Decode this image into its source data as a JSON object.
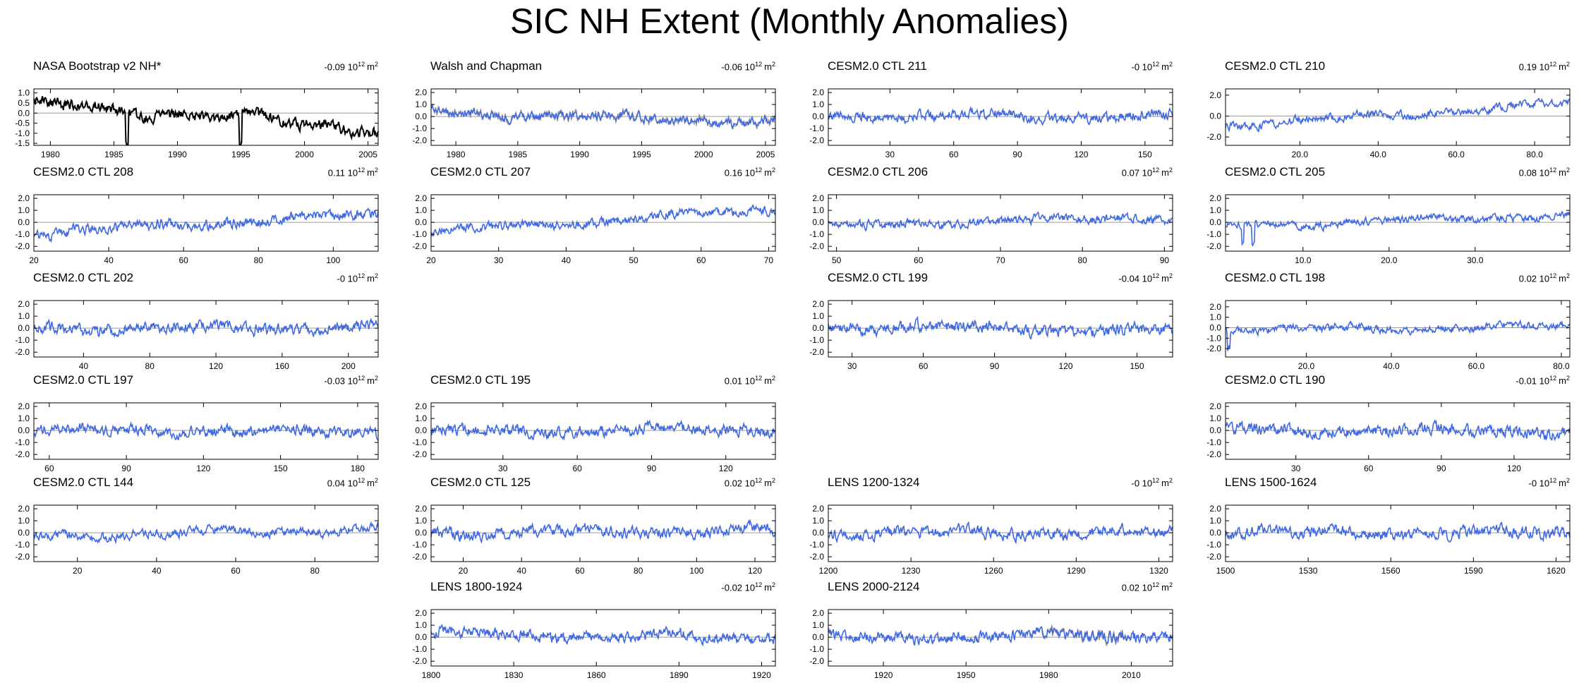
{
  "title": "SIC NH Extent (Monthly Anomalies)",
  "colors": {
    "model": "#4169e1",
    "obs": "#000000",
    "obs_overlay": "#8c8c8c",
    "zero_line": "#9a9a9a"
  },
  "mean_unit": {
    "base": "10",
    "exp": "12",
    "unit": "m",
    "unit_exp": "2"
  },
  "chart_data": [
    {
      "type": "line",
      "title": "NASA Bootstrap v2 NH*",
      "mean": "-0.09",
      "style": "obs",
      "row": 0,
      "col": 0,
      "x_range": [
        1978.7,
        2005.8
      ],
      "y_range": [
        -1.6,
        1.2
      ],
      "y_ticks": [
        "1.0",
        "0.5",
        "0.0",
        "-0.5",
        "-1.0",
        "-1.5"
      ],
      "x_ticks": [
        "1980",
        "1985",
        "1990",
        "1995",
        "2000",
        "2005"
      ],
      "series": [
        {
          "trend_start": 0.45,
          "trend_end": -0.75,
          "amplitude": 0.22,
          "spikes": [
            0.27,
            0.6
          ],
          "seed": 1
        }
      ]
    },
    {
      "type": "line",
      "title": "Walsh and Chapman",
      "mean": "-0.06",
      "style": "model",
      "row": 0,
      "col": 1,
      "x_range": [
        1978.0,
        2005.8
      ],
      "y_range": [
        -2.4,
        2.3
      ],
      "y_ticks": [
        "2.0",
        "1.0",
        "0.0",
        "-1.0",
        "-2.0"
      ],
      "x_ticks": [
        "1980",
        "1985",
        "1990",
        "1995",
        "2000",
        "2005"
      ],
      "overlay": "full",
      "series": [
        {
          "trend_start": 0.4,
          "trend_end": -0.5,
          "amplitude": 0.3,
          "seed": 2
        }
      ]
    },
    {
      "type": "line",
      "title": "CESM2.0 CTL 211",
      "mean": "-0",
      "style": "model",
      "row": 0,
      "col": 2,
      "x_range": [
        1,
        163
      ],
      "y_range": [
        -2.4,
        2.3
      ],
      "y_ticks": [
        "2.0",
        "1.0",
        "0.0",
        "-1.0",
        "-2.0"
      ],
      "x_ticks": [
        "30",
        "60",
        "90",
        "120",
        "150"
      ],
      "series": [
        {
          "trend_start": 0.1,
          "trend_end": 0.0,
          "amplitude": 0.35,
          "seed": 3
        }
      ]
    },
    {
      "type": "line",
      "title": "CESM2.0 CTL 210",
      "mean": "0.19",
      "style": "model",
      "row": 0,
      "col": 3,
      "x_range": [
        1,
        89
      ],
      "y_range": [
        -2.8,
        2.6
      ],
      "y_ticks": [
        "2.0",
        "0.0",
        "-2.0"
      ],
      "x_ticks": [
        "20.0",
        "40.0",
        "60.0",
        "80.0"
      ],
      "series": [
        {
          "trend_start": -0.9,
          "trend_end": 1.2,
          "amplitude": 0.3,
          "seed": 4
        }
      ]
    },
    {
      "type": "line",
      "title": "CESM2.0 CTL 208",
      "mean": "0.11",
      "style": "model",
      "row": 1,
      "col": 0,
      "x_range": [
        20,
        112
      ],
      "y_range": [
        -2.4,
        2.3
      ],
      "y_ticks": [
        "2.0",
        "1.0",
        "0.0",
        "-1.0",
        "-2.0"
      ],
      "x_ticks": [
        "20",
        "40",
        "60",
        "80",
        "100"
      ],
      "series": [
        {
          "trend_start": -0.9,
          "trend_end": 0.7,
          "amplitude": 0.35,
          "seed": 5
        }
      ]
    },
    {
      "type": "line",
      "title": "CESM2.0 CTL 207",
      "mean": "0.16",
      "style": "model",
      "row": 1,
      "col": 1,
      "x_range": [
        20,
        71
      ],
      "y_range": [
        -2.4,
        2.3
      ],
      "y_ticks": [
        "2.0",
        "1.0",
        "0.0",
        "-1.0",
        "-2.0"
      ],
      "x_ticks": [
        "20",
        "30",
        "40",
        "50",
        "60",
        "70"
      ],
      "series": [
        {
          "trend_start": -0.8,
          "trend_end": 1.1,
          "amplitude": 0.3,
          "seed": 6
        }
      ]
    },
    {
      "type": "line",
      "title": "CESM2.0 CTL 206",
      "mean": "0.07",
      "style": "model",
      "row": 1,
      "col": 2,
      "x_range": [
        49,
        91
      ],
      "y_range": [
        -2.4,
        2.3
      ],
      "y_ticks": [
        "2.0",
        "1.0",
        "0.0",
        "-1.0",
        "-2.0"
      ],
      "x_ticks": [
        "50",
        "60",
        "70",
        "80",
        "90"
      ],
      "series": [
        {
          "trend_start": -0.4,
          "trend_end": 0.5,
          "amplitude": 0.3,
          "seed": 7
        }
      ]
    },
    {
      "type": "line",
      "title": "CESM2.0 CTL 205",
      "mean": "0.08",
      "style": "model",
      "row": 1,
      "col": 3,
      "x_range": [
        1,
        41
      ],
      "y_range": [
        -2.4,
        2.3
      ],
      "y_ticks": [
        "2.0",
        "1.0",
        "0.0",
        "-1.0",
        "-2.0"
      ],
      "x_ticks": [
        "10.0",
        "20.0",
        "30.0"
      ],
      "series": [
        {
          "trend_start": -0.3,
          "trend_end": 0.6,
          "amplitude": 0.25,
          "spikes": [
            0.05,
            0.08
          ],
          "seed": 8
        }
      ]
    },
    {
      "type": "line",
      "title": "CESM2.0 CTL 202",
      "mean": "-0",
      "style": "model",
      "row": 2,
      "col": 0,
      "x_range": [
        10,
        218
      ],
      "y_range": [
        -2.4,
        2.3
      ],
      "y_ticks": [
        "2.0",
        "1.0",
        "0.0",
        "-1.0",
        "-2.0"
      ],
      "x_ticks": [
        "40",
        "80",
        "120",
        "160",
        "200"
      ],
      "series": [
        {
          "trend_start": 0.0,
          "trend_end": 0.0,
          "amplitude": 0.38,
          "seed": 9
        }
      ]
    },
    {
      "type": "line",
      "title": "CESM2.0 CTL 199",
      "mean": "-0.04",
      "style": "model",
      "row": 2,
      "col": 2,
      "x_range": [
        20,
        165
      ],
      "y_range": [
        -2.4,
        2.3
      ],
      "y_ticks": [
        "2.0",
        "1.0",
        "0.0",
        "-1.0",
        "-2.0"
      ],
      "x_ticks": [
        "30",
        "60",
        "90",
        "120",
        "150"
      ],
      "series": [
        {
          "trend_start": 0.2,
          "trend_end": -0.3,
          "amplitude": 0.38,
          "seed": 10
        }
      ]
    },
    {
      "type": "line",
      "title": "CESM2.0 CTL 198",
      "mean": "0.02",
      "style": "model",
      "row": 2,
      "col": 3,
      "x_range": [
        1,
        82
      ],
      "y_range": [
        -2.8,
        2.6
      ],
      "y_ticks": [
        "2.0",
        "1.0",
        "0.0",
        "-1.0",
        "-2.0"
      ],
      "x_ticks": [
        "20.0",
        "40.0",
        "60.0",
        "80.0"
      ],
      "series": [
        {
          "trend_start": -0.2,
          "trend_end": 0.1,
          "amplitude": 0.3,
          "spikes": [
            0.01
          ],
          "seed": 11
        }
      ]
    },
    {
      "type": "line",
      "title": "CESM2.0 CTL 197",
      "mean": "-0.03",
      "style": "model",
      "row": 3,
      "col": 0,
      "x_range": [
        54,
        188
      ],
      "y_range": [
        -2.4,
        2.3
      ],
      "y_ticks": [
        "2.0",
        "1.0",
        "0.0",
        "-1.0",
        "-2.0"
      ],
      "x_ticks": [
        "60",
        "90",
        "120",
        "150",
        "180"
      ],
      "series": [
        {
          "trend_start": 0.1,
          "trend_end": -0.2,
          "amplitude": 0.38,
          "seed": 12
        }
      ]
    },
    {
      "type": "line",
      "title": "CESM2.0 CTL 195",
      "mean": "0.01",
      "style": "model",
      "row": 3,
      "col": 1,
      "x_range": [
        1,
        140
      ],
      "y_range": [
        -2.4,
        2.3
      ],
      "y_ticks": [
        "2.0",
        "1.0",
        "0.0",
        "-1.0",
        "-2.0"
      ],
      "x_ticks": [
        "30",
        "60",
        "90",
        "120"
      ],
      "series": [
        {
          "trend_start": -0.1,
          "trend_end": 0.1,
          "amplitude": 0.38,
          "seed": 13
        }
      ]
    },
    {
      "type": "line",
      "title": "CESM2.0 CTL 190",
      "mean": "-0.01",
      "style": "model",
      "row": 3,
      "col": 3,
      "x_range": [
        1,
        143
      ],
      "y_range": [
        -2.4,
        2.3
      ],
      "y_ticks": [
        "2.0",
        "1.0",
        "0.0",
        "-1.0",
        "-2.0"
      ],
      "x_ticks": [
        "30",
        "60",
        "90",
        "120"
      ],
      "series": [
        {
          "trend_start": 0.1,
          "trend_end": -0.1,
          "amplitude": 0.4,
          "seed": 14
        }
      ]
    },
    {
      "type": "line",
      "title": "CESM2.0 CTL 144",
      "mean": "0.04",
      "style": "model",
      "row": 4,
      "col": 0,
      "x_range": [
        9,
        96
      ],
      "y_range": [
        -2.4,
        2.3
      ],
      "y_ticks": [
        "2.0",
        "1.0",
        "0.0",
        "-1.0",
        "-2.0"
      ],
      "x_ticks": [
        "20",
        "40",
        "60",
        "80"
      ],
      "series": [
        {
          "trend_start": -0.3,
          "trend_end": 0.3,
          "amplitude": 0.3,
          "seed": 15
        }
      ]
    },
    {
      "type": "line",
      "title": "CESM2.0 CTL 125",
      "mean": "0.02",
      "style": "model",
      "row": 4,
      "col": 1,
      "x_range": [
        9,
        127
      ],
      "y_range": [
        -2.4,
        2.3
      ],
      "y_ticks": [
        "2.0",
        "1.0",
        "0.0",
        "-1.0",
        "-2.0"
      ],
      "x_ticks": [
        "20",
        "40",
        "60",
        "80",
        "100",
        "120"
      ],
      "series": [
        {
          "trend_start": 0.0,
          "trend_end": 0.2,
          "amplitude": 0.38,
          "seed": 16
        }
      ]
    },
    {
      "type": "line",
      "title": "LENS 1200-1324",
      "mean": "-0",
      "style": "model",
      "row": 4,
      "col": 2,
      "x_range": [
        1200,
        1325
      ],
      "y_range": [
        -2.4,
        2.3
      ],
      "y_ticks": [
        "2.0",
        "1.0",
        "0.0",
        "-1.0",
        "-2.0"
      ],
      "x_ticks": [
        "1200",
        "1230",
        "1260",
        "1290",
        "1320"
      ],
      "series": [
        {
          "trend_start": 0.0,
          "trend_end": 0.0,
          "amplitude": 0.38,
          "seed": 17
        }
      ]
    },
    {
      "type": "line",
      "title": "LENS 1500-1624",
      "mean": "-0",
      "style": "model",
      "row": 4,
      "col": 3,
      "x_range": [
        1500,
        1625
      ],
      "y_range": [
        -2.4,
        2.3
      ],
      "y_ticks": [
        "2.0",
        "1.0",
        "0.0",
        "-1.0",
        "-2.0"
      ],
      "x_ticks": [
        "1500",
        "1530",
        "1560",
        "1590",
        "1620"
      ],
      "series": [
        {
          "trend_start": 0.0,
          "trend_end": 0.0,
          "amplitude": 0.38,
          "seed": 18
        }
      ]
    },
    {
      "type": "line",
      "title": "LENS 1800-1924",
      "mean": "-0.02",
      "style": "model",
      "row": 5,
      "col": 1,
      "x_range": [
        1800,
        1925
      ],
      "y_range": [
        -2.4,
        2.3
      ],
      "y_ticks": [
        "2.0",
        "1.0",
        "0.0",
        "-1.0",
        "-2.0"
      ],
      "x_ticks": [
        "1800",
        "1830",
        "1860",
        "1890",
        "1920"
      ],
      "series": [
        {
          "trend_start": 0.3,
          "trend_end": -0.1,
          "amplitude": 0.38,
          "seed": 19
        }
      ]
    },
    {
      "type": "line",
      "title": "LENS 2000-2124",
      "mean": "0.02",
      "style": "model",
      "row": 5,
      "col": 2,
      "x_range": [
        1900,
        2025
      ],
      "y_range": [
        -2.4,
        2.3
      ],
      "y_ticks": [
        "2.0",
        "1.0",
        "0.0",
        "-1.0",
        "-2.0"
      ],
      "x_ticks": [
        "1920",
        "1950",
        "1980",
        "2010"
      ],
      "overlay": "late",
      "series": [
        {
          "trend_start": -0.1,
          "trend_end": 0.2,
          "amplitude": 0.38,
          "seed": 20
        }
      ]
    }
  ]
}
